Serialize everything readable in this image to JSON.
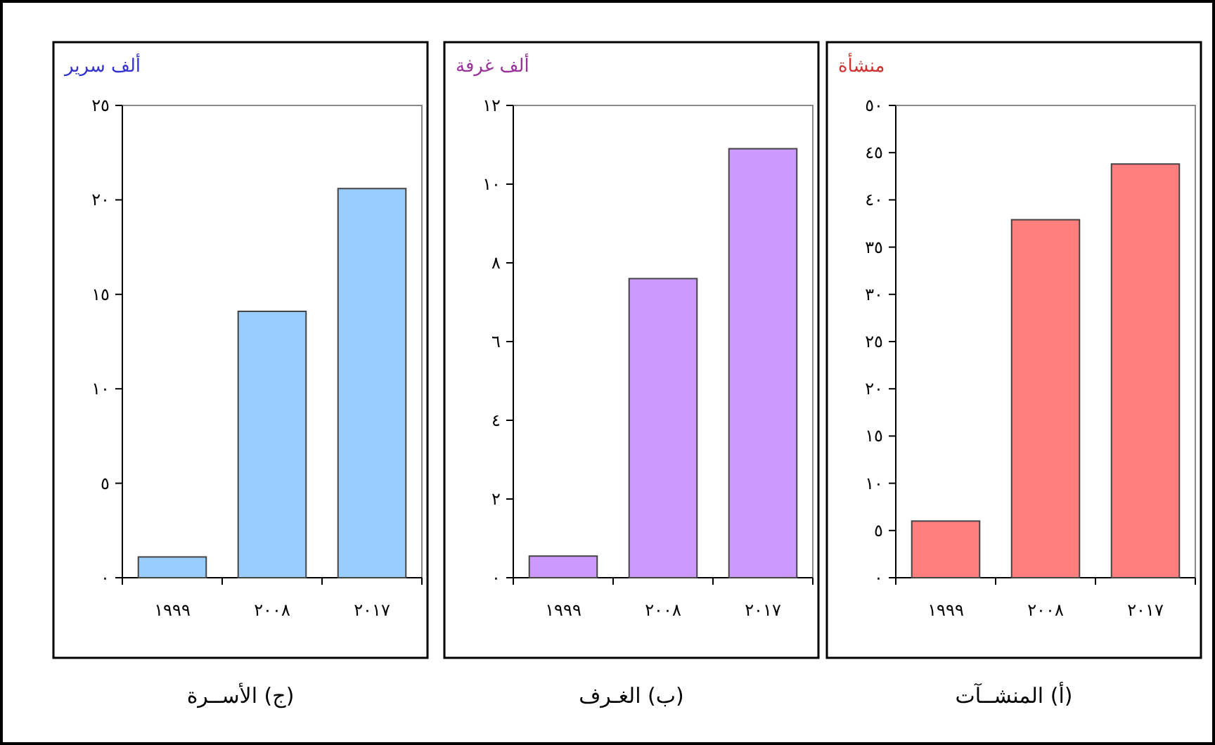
{
  "chart_data": [
    {
      "type": "bar",
      "title": "(أ) المنشــآت",
      "ylabel": "منشأة",
      "categories": [
        "١٩٩٩",
        "٢٠٠٨",
        "٢٠١٧"
      ],
      "values": [
        6,
        37.9,
        43.8
      ],
      "color": "#ff7f7f",
      "ylim": [
        0,
        50
      ],
      "yticks": [
        {
          "value": 0,
          "label": "٠"
        },
        {
          "value": 5,
          "label": "٥"
        },
        {
          "value": 10,
          "label": "١٠"
        },
        {
          "value": 15,
          "label": "١٥"
        },
        {
          "value": 20,
          "label": "٢٠"
        },
        {
          "value": 25,
          "label": "٢٥"
        },
        {
          "value": 30,
          "label": "٣٠"
        },
        {
          "value": 35,
          "label": "٣٥"
        },
        {
          "value": 40,
          "label": "٤٠"
        },
        {
          "value": 45,
          "label": "٤٥"
        },
        {
          "value": 50,
          "label": "٥٠"
        }
      ]
    },
    {
      "type": "bar",
      "title": "(ب) الغـرف",
      "ylabel": "ألف غرفة",
      "categories": [
        "١٩٩٩",
        "٢٠٠٨",
        "٢٠١٧"
      ],
      "values": [
        0.55,
        7.6,
        10.9
      ],
      "color": "#cc99ff",
      "ylim": [
        0,
        12
      ],
      "yticks": [
        {
          "value": 0,
          "label": "٠"
        },
        {
          "value": 2,
          "label": "٢"
        },
        {
          "value": 4,
          "label": "٤"
        },
        {
          "value": 6,
          "label": "٦"
        },
        {
          "value": 8,
          "label": "٨"
        },
        {
          "value": 10,
          "label": "١٠"
        },
        {
          "value": 12,
          "label": "١٢"
        }
      ]
    },
    {
      "type": "bar",
      "title": "(ج) الأســرة",
      "ylabel": "ألف سرير",
      "categories": [
        "١٩٩٩",
        "٢٠٠٨",
        "٢٠١٧"
      ],
      "values": [
        1.1,
        14.1,
        20.6
      ],
      "color": "#99ccff",
      "ylim": [
        0,
        25
      ],
      "yticks": [
        {
          "value": 0,
          "label": "٠"
        },
        {
          "value": 5,
          "label": "٥"
        },
        {
          "value": 10,
          "label": "١٠"
        },
        {
          "value": 15,
          "label": "١٥"
        },
        {
          "value": 20,
          "label": "٢٠"
        },
        {
          "value": 25,
          "label": "٢٥"
        }
      ]
    }
  ]
}
